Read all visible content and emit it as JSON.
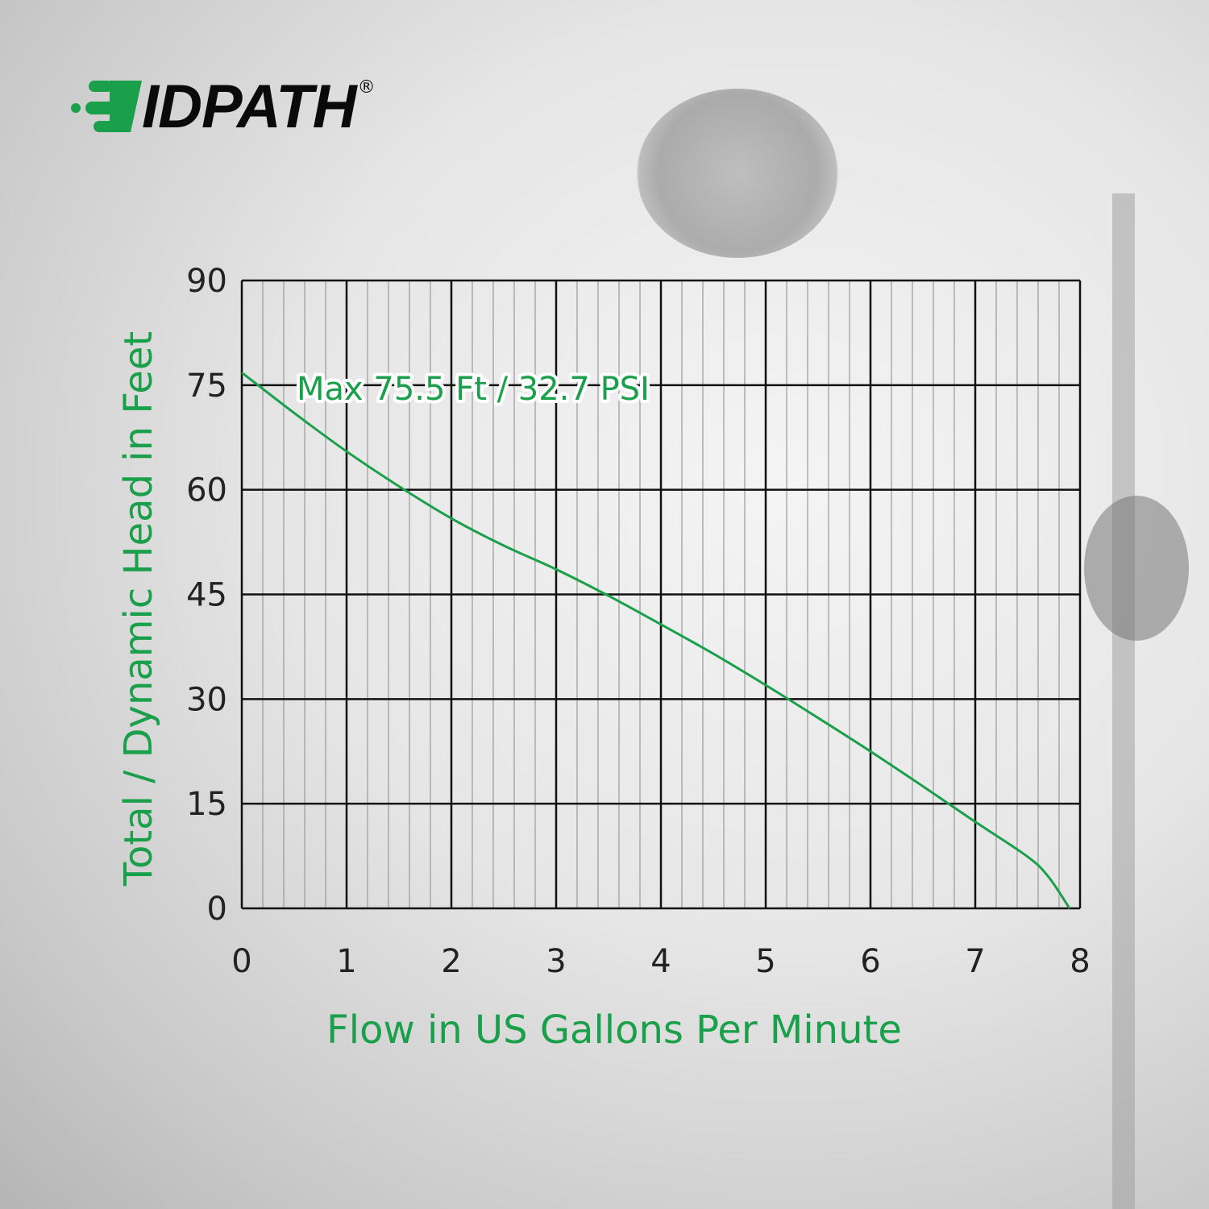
{
  "brand": {
    "name": "IDPATH",
    "registered": "®",
    "color": "#1aa04a"
  },
  "chart_data": {
    "type": "line",
    "title": "",
    "xlabel": "Flow in US Gallons Per Minute",
    "ylabel": "Total / Dynamic Head in Feet",
    "xlim": [
      0,
      8
    ],
    "ylim": [
      0,
      90
    ],
    "xticks": [
      "0",
      "1",
      "2",
      "3",
      "4",
      "5",
      "6",
      "7",
      "8"
    ],
    "yticks": [
      "0",
      "15",
      "30",
      "45",
      "60",
      "75",
      "90"
    ],
    "grid": true,
    "annotation": "Max 75.5 Ft / 32.7 PSI",
    "series": [
      {
        "color": "#1aa04a",
        "x": [
          0,
          0.5,
          1,
          1.5,
          2,
          2.5,
          3,
          3.5,
          4,
          4.5,
          5,
          5.5,
          6,
          6.5,
          7,
          7.5,
          7.7,
          7.9
        ],
        "y": [
          76.8,
          71,
          65.5,
          60.5,
          55.9,
          52,
          48.6,
          44.8,
          40.7,
          36.5,
          32,
          27.3,
          22.5,
          17.5,
          12.4,
          7.4,
          4.5,
          0
        ]
      }
    ]
  }
}
